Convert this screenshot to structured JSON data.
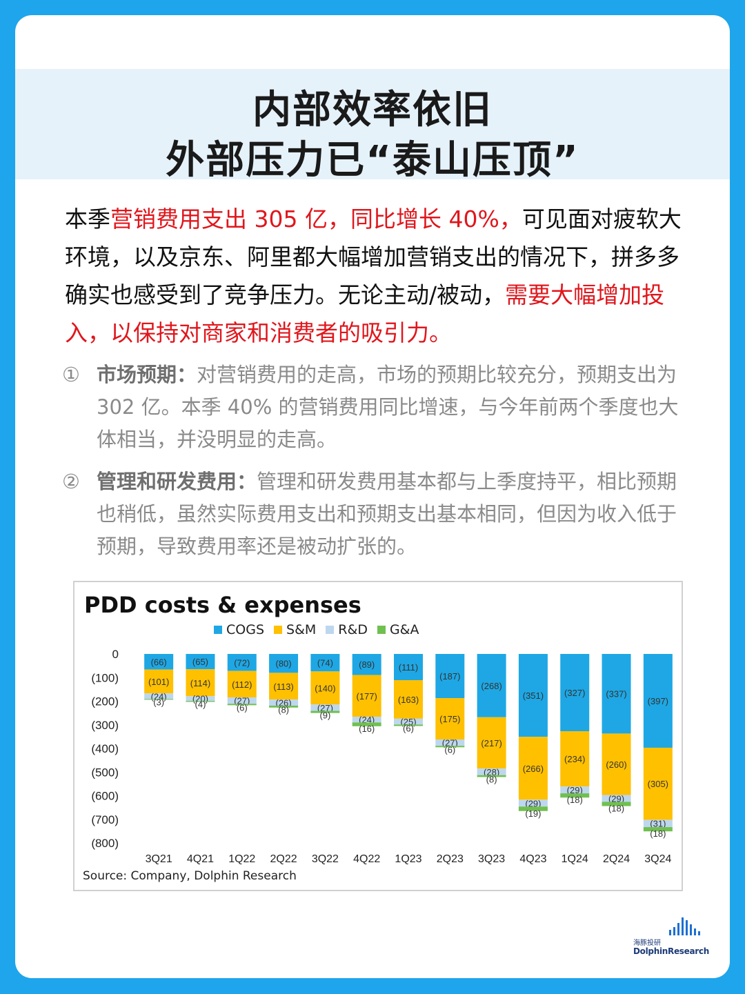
{
  "header": {
    "title_line1": "内部效率依旧",
    "title_line2": "外部压力已“泰山压顶”"
  },
  "intro": {
    "part1": "本季",
    "part2_red": "营销费用支出 305 亿，同比增长 40%，",
    "part3": "可见面对疲软大环境，以及京东、阿里都大幅增加营销支出的情况下，拼多多确实也感受到了竞争压力。无论主动/被动，",
    "part4_red": "需要大幅增加投入，以保持对商家和消费者的吸引力。"
  },
  "points": [
    {
      "num": "①",
      "lead": "市场预期：",
      "text": "对营销费用的走高，市场的预期比较充分，预期支出为 302 亿。本季 40% 的营销费用同比增速，与今年前两个季度也大体相当，并没明显的走高。"
    },
    {
      "num": "②",
      "lead": "管理和研发费用：",
      "text": "管理和研发费用基本都与上季度持平，相比预期也稍低，虽然实际费用支出和预期支出基本相同，但因为收入低于预期，导致费用率还是被动扩张的。"
    }
  ],
  "chart_data": {
    "type": "bar",
    "stacked": true,
    "title": "PDD costs & expenses",
    "source": "Source: Company,  Dolphin Research",
    "categories": [
      "3Q21",
      "4Q21",
      "1Q22",
      "2Q22",
      "3Q22",
      "4Q22",
      "1Q23",
      "2Q23",
      "3Q23",
      "4Q23",
      "1Q24",
      "2Q24",
      "3Q24"
    ],
    "ylim": [
      -800,
      0
    ],
    "yticks": [
      0,
      -100,
      -200,
      -300,
      -400,
      -500,
      -600,
      -700,
      -800
    ],
    "ytick_labels": [
      "0",
      "(100)",
      "(200)",
      "(300)",
      "(400)",
      "(500)",
      "(600)",
      "(700)",
      "(800)"
    ],
    "legend_position": "top",
    "series": [
      {
        "name": "COGS",
        "color": "#1ea7e4",
        "values": [
          -66,
          -65,
          -72,
          -80,
          -74,
          -89,
          -111,
          -187,
          -268,
          -351,
          -327,
          -337,
          -397
        ],
        "labels": [
          "(66)",
          "(65)",
          "(72)",
          "(80)",
          "(74)",
          "(89)",
          "(111)",
          "(187)",
          "(268)",
          "(351)",
          "(327)",
          "(337)",
          "(397)"
        ]
      },
      {
        "name": "S&M",
        "color": "#ffc000",
        "values": [
          -101,
          -114,
          -112,
          -113,
          -140,
          -177,
          -163,
          -175,
          -217,
          -266,
          -234,
          -260,
          -305
        ],
        "labels": [
          "(101)",
          "(114)",
          "(112)",
          "(113)",
          "(140)",
          "(177)",
          "(163)",
          "(175)",
          "(217)",
          "(266)",
          "(234)",
          "(260)",
          "(305)"
        ]
      },
      {
        "name": "R&D",
        "color": "#bdd7ee",
        "values": [
          -24,
          -20,
          -27,
          -26,
          -27,
          -24,
          -25,
          -27,
          -28,
          -29,
          -29,
          -29,
          -31
        ],
        "labels": [
          "(24)",
          "(20)",
          "(27)",
          "(26)",
          "(27)",
          "(24)",
          "(25)",
          "(27)",
          "(28)",
          "(29)",
          "(29)",
          "(29)",
          "(31)"
        ]
      },
      {
        "name": "G&A",
        "color": "#70c050",
        "values": [
          -3,
          -4,
          -6,
          -8,
          -9,
          -16,
          -6,
          -6,
          -8,
          -19,
          -18,
          -18,
          -18
        ],
        "labels": [
          "(3)",
          "(4)",
          "(6)",
          "(8)",
          "(9)",
          "(16)",
          "(6)",
          "(6)",
          "(8)",
          "(19)",
          "(18)",
          "(18)",
          "(18)"
        ]
      }
    ]
  },
  "logo": {
    "cn": "海豚投研",
    "en": "DolphinResearch"
  }
}
